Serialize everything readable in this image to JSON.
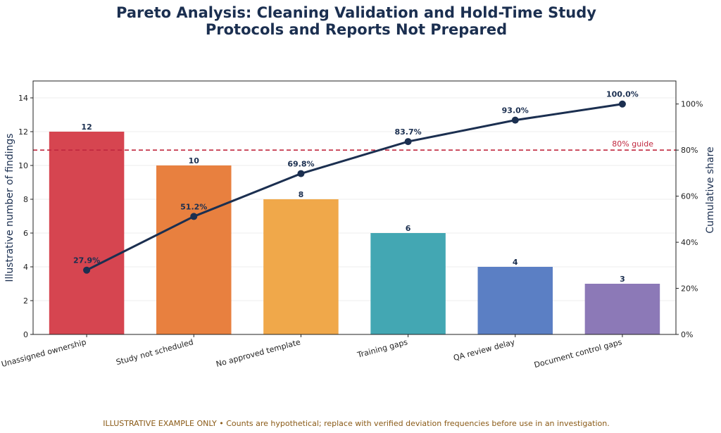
{
  "title_lines": [
    "Pareto Analysis: Cleaning Validation and Hold-Time Study",
    "Protocols and Reports Not Prepared"
  ],
  "footnote": "ILLUSTRATIVE EXAMPLE ONLY  •  Counts are hypothetical; replace with verified deviation frequencies before use in an investigation.",
  "chart_data": {
    "type": "bar",
    "categories": [
      "Unassigned ownership",
      "Study not scheduled",
      "No approved template",
      "Training gaps",
      "QA review delay",
      "Document control gaps"
    ],
    "values": [
      12,
      10,
      8,
      6,
      4,
      3
    ],
    "bar_labels": [
      "12",
      "10",
      "8",
      "6",
      "4",
      "3"
    ],
    "bar_colors": [
      "#d64550",
      "#e8803f",
      "#f0a84a",
      "#43a7b3",
      "#5b7fc4",
      "#8c79b7"
    ],
    "cumulative": [
      27.9,
      51.2,
      69.8,
      83.7,
      93.0,
      100.0
    ],
    "cumulative_labels": [
      "27.9%",
      "51.2%",
      "69.8%",
      "83.7%",
      "93.0%",
      "100.0%"
    ],
    "line_color": "#1b2f50",
    "ylabel": "Illustrative number of findings",
    "y2label": "Cumulative share",
    "ylim": [
      0,
      15
    ],
    "y2lim": [
      0,
      110
    ],
    "yticks": [
      "0",
      "2",
      "4",
      "6",
      "8",
      "10",
      "12",
      "14"
    ],
    "y2ticks": [
      "0%",
      "20%",
      "40%",
      "60%",
      "80%",
      "100%"
    ],
    "guide_value": 80,
    "guide_label": "80% guide",
    "guide_color": "#c0283f",
    "grid": true
  }
}
